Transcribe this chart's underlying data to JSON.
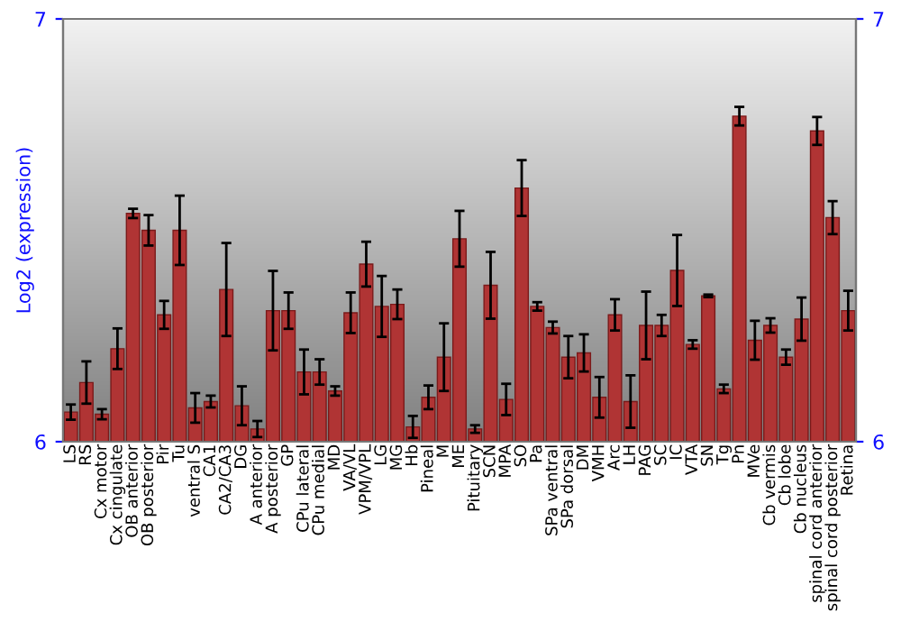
{
  "chart_data": {
    "type": "bar",
    "ylabel": "Log2 (expression)",
    "categories": [
      "LS",
      "RS",
      "Cx motor",
      "Cx cingulate",
      "OB anterior",
      "OB posterior",
      "Pir",
      "Tu",
      "ventral S",
      "CA1",
      "CA2/CA3",
      "DG",
      "A anterior",
      "A posterior",
      "GP",
      "CPu lateral",
      "CPu medial",
      "MD",
      "VA/VL",
      "VPM/VPL",
      "LG",
      "MG",
      "Hb",
      "Pineal",
      "M",
      "ME",
      "Pituitary",
      "SCN",
      "MPA",
      "SO",
      "Pa",
      "SPa ventral",
      "SPa dorsal",
      "DM",
      "VMH",
      "Arc",
      "LH",
      "PAG",
      "SC",
      "IC",
      "VTA",
      "SN",
      "Tg",
      "Pn",
      "MVe",
      "Cb vermis",
      "Cb lobe",
      "Cb nucleus",
      "spinal cord anterior",
      "spinal cord posterior",
      "Retina"
    ],
    "values": [
      6.07,
      6.14,
      6.065,
      6.22,
      6.54,
      6.5,
      6.3,
      6.5,
      6.08,
      6.095,
      6.36,
      6.085,
      6.03,
      6.31,
      6.31,
      6.165,
      6.165,
      6.12,
      6.305,
      6.42,
      6.32,
      6.325,
      6.035,
      6.105,
      6.2,
      6.48,
      6.03,
      6.37,
      6.1,
      6.6,
      6.32,
      6.27,
      6.2,
      6.21,
      6.105,
      6.3,
      6.095,
      6.275,
      6.275,
      6.405,
      6.23,
      6.345,
      6.125,
      6.77,
      6.24,
      6.275,
      6.2,
      6.29,
      6.735,
      6.53,
      6.31
    ],
    "errors": [
      0.018,
      0.05,
      0.012,
      0.048,
      0.011,
      0.036,
      0.033,
      0.082,
      0.035,
      0.014,
      0.11,
      0.046,
      0.019,
      0.094,
      0.043,
      0.053,
      0.03,
      0.011,
      0.048,
      0.053,
      0.072,
      0.035,
      0.026,
      0.028,
      0.08,
      0.066,
      0.009,
      0.079,
      0.037,
      0.066,
      0.01,
      0.014,
      0.05,
      0.044,
      0.048,
      0.037,
      0.062,
      0.08,
      0.025,
      0.084,
      0.01,
      0.003,
      0.01,
      0.022,
      0.046,
      0.017,
      0.018,
      0.051,
      0.033,
      0.039,
      0.047
    ],
    "color": "#b03434",
    "ylim": [
      6,
      7
    ],
    "yticks": [
      6,
      7
    ],
    "y2lim": [
      6,
      7
    ],
    "y2ticks": [
      6,
      7
    ],
    "grid": false
  }
}
